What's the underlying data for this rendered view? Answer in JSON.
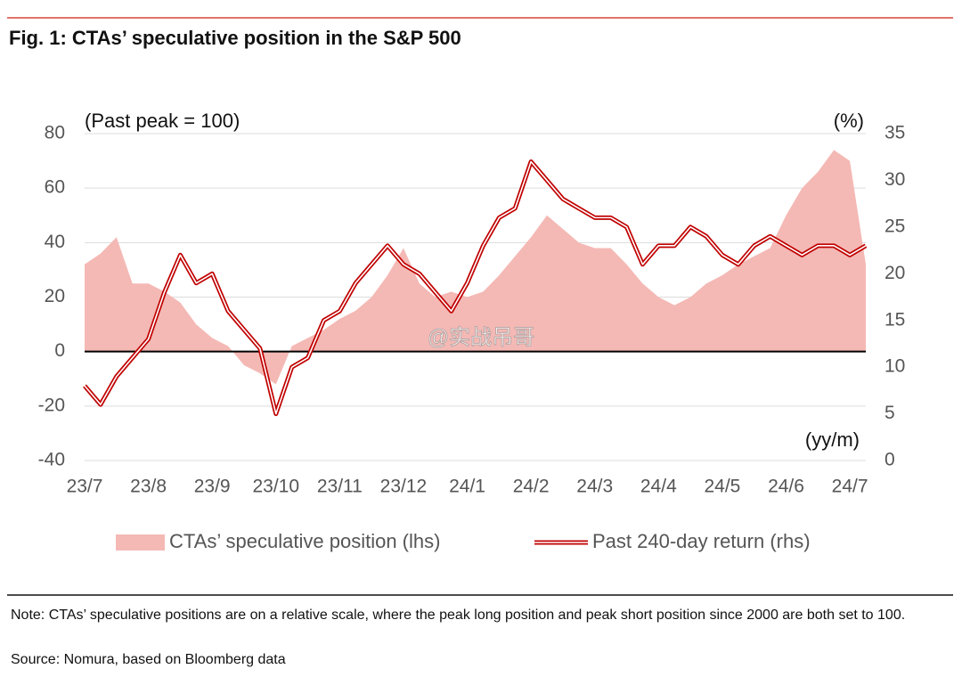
{
  "chart_data": {
    "type": "area-line",
    "title": "Fig. 1: CTAs’ speculative position in the S&P 500",
    "left_unit": "(Past peak = 100)",
    "right_unit": "(%)",
    "x_unit": "(yy/m)",
    "watermark": "@实战吊哥",
    "categories": [
      "23/7",
      null,
      null,
      null,
      "23/8",
      null,
      null,
      null,
      "23/9",
      null,
      null,
      null,
      "23/10",
      null,
      null,
      null,
      "23/11",
      null,
      null,
      null,
      "23/12",
      null,
      null,
      null,
      "24/1",
      null,
      null,
      null,
      "24/2",
      null,
      null,
      null,
      "24/3",
      null,
      null,
      null,
      "24/4",
      null,
      null,
      null,
      "24/5",
      null,
      null,
      null,
      "24/6",
      null,
      null,
      null,
      "24/7",
      null
    ],
    "ylim": [
      -40,
      80
    ],
    "yticks": [
      -40,
      -20,
      0,
      20,
      40,
      60,
      80
    ],
    "y2lim": [
      0,
      35
    ],
    "y2ticks": [
      0,
      5,
      10,
      15,
      20,
      25,
      30,
      35
    ],
    "series": [
      {
        "name": "CTAs’ speculative position (lhs)",
        "kind": "area",
        "color": "#f4b9b5",
        "values": [
          32,
          36,
          42,
          25,
          25,
          22,
          18,
          10,
          5,
          2,
          -5,
          -8,
          -12,
          2,
          5,
          8,
          12,
          15,
          20,
          28,
          38,
          25,
          20,
          22,
          20,
          22,
          28,
          35,
          42,
          50,
          45,
          40,
          38,
          38,
          32,
          25,
          20,
          17,
          20,
          25,
          28,
          32,
          35,
          38,
          50,
          60,
          66,
          74,
          70,
          32
        ]
      },
      {
        "name": "Past 240-day return (rhs)",
        "kind": "line",
        "axis": "y2",
        "color": "#c00000",
        "values": [
          8,
          6,
          9,
          11,
          13,
          18,
          22,
          19,
          20,
          16,
          14,
          12,
          5,
          10,
          11,
          15,
          16,
          19,
          21,
          23,
          21,
          20,
          18,
          16,
          19,
          23,
          26,
          27,
          32,
          30,
          28,
          27,
          26,
          26,
          25,
          21,
          23,
          23,
          25,
          24,
          22,
          21,
          23,
          24,
          23,
          22,
          23,
          23,
          22,
          23
        ]
      }
    ],
    "note": "Note: CTAs’ speculative positions are on a relative scale, where the peak long position and peak short position since 2000 are both set to 100.",
    "source": "Source: Nomura, based on Bloomberg data"
  }
}
